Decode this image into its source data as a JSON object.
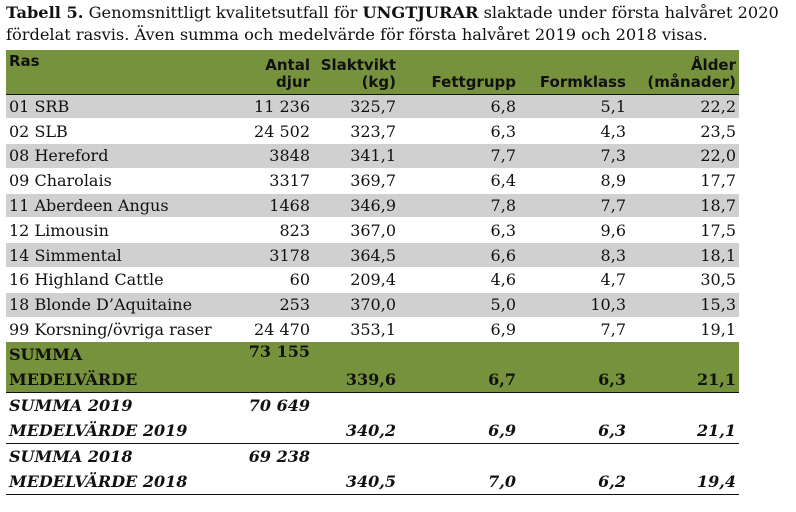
{
  "caption": {
    "label": "Tabell 5.",
    "text_a": " Genomsnittligt kvalitetsutfall för ",
    "bold_word": "UNGTJURAR",
    "text_b": " slaktade under första halvåret 2020",
    "line2": "fördelat rasvis. Även summa och medelvärde för första halvåret 2019 och 2018 visas."
  },
  "headers": {
    "ras": "Ras",
    "antal_1": "Antal",
    "antal_2": "djur",
    "slaktvikt_1": "Slaktvikt",
    "slaktvikt_2": "(kg)",
    "fettgrupp": "Fettgrupp",
    "formklass": "Formklass",
    "alder_1": "Ålder",
    "alder_2": "(månader)"
  },
  "rows": [
    {
      "ras": "01 SRB",
      "antal": "11 236",
      "slaktvikt": "325,7",
      "fettgrupp": "6,8",
      "formklass": "5,1",
      "alder": "22,2"
    },
    {
      "ras": "02 SLB",
      "antal": "24 502",
      "slaktvikt": "323,7",
      "fettgrupp": "6,3",
      "formklass": "4,3",
      "alder": "23,5"
    },
    {
      "ras": "08 Hereford",
      "antal": "3848",
      "slaktvikt": "341,1",
      "fettgrupp": "7,7",
      "formklass": "7,3",
      "alder": "22,0"
    },
    {
      "ras": "09 Charolais",
      "antal": "3317",
      "slaktvikt": "369,7",
      "fettgrupp": "6,4",
      "formklass": "8,9",
      "alder": "17,7"
    },
    {
      "ras": "11 Aberdeen Angus",
      "antal": "1468",
      "slaktvikt": "346,9",
      "fettgrupp": "7,8",
      "formklass": "7,7",
      "alder": "18,7"
    },
    {
      "ras": "12 Limousin",
      "antal": "823",
      "slaktvikt": "367,0",
      "fettgrupp": "6,3",
      "formklass": "9,6",
      "alder": "17,5"
    },
    {
      "ras": "14 Simmental",
      "antal": "3178",
      "slaktvikt": "364,5",
      "fettgrupp": "6,6",
      "formklass": "8,3",
      "alder": "18,1"
    },
    {
      "ras": "16 Highland Cattle",
      "antal": "60",
      "slaktvikt": "209,4",
      "fettgrupp": "4,6",
      "formklass": "4,7",
      "alder": "30,5"
    },
    {
      "ras": "18 Blonde D’Aquitaine",
      "antal": "253",
      "slaktvikt": "370,0",
      "fettgrupp": "5,0",
      "formklass": "10,3",
      "alder": "15,3"
    },
    {
      "ras": "99 Korsning/övriga raser",
      "antal": "24 470",
      "slaktvikt": "353,1",
      "fettgrupp": "6,9",
      "formklass": "7,7",
      "alder": "19,1"
    }
  ],
  "summary_2020": {
    "summa_label": "SUMMA",
    "summa_value": "73 155",
    "medel_label": "MEDELVÄRDE",
    "slaktvikt": "339,6",
    "fettgrupp": "6,7",
    "formklass": "6,3",
    "alder": "21,1"
  },
  "summary_2019": {
    "summa_label": "SUMMA 2019",
    "summa_value": "70 649",
    "medel_label": "MEDELVÄRDE 2019",
    "slaktvikt": "340,2",
    "fettgrupp": "6,9",
    "formklass": "6,3",
    "alder": "21,1"
  },
  "summary_2018": {
    "summa_label": "SUMMA 2018",
    "summa_value": "69 238",
    "medel_label": "MEDELVÄRDE 2018",
    "slaktvikt": "340,5",
    "fettgrupp": "7,0",
    "formklass": "6,2",
    "alder": "19,4"
  },
  "colors": {
    "header_green": "#76923c",
    "row_grey": "#d0d0d0"
  }
}
